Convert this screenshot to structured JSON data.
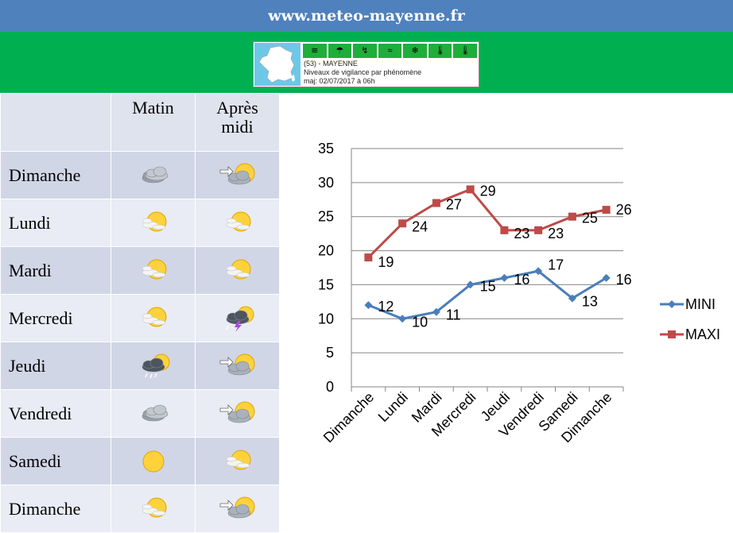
{
  "header": {
    "site": "www.meteo-mayenne.fr"
  },
  "vigilance": {
    "dept": "(53) - MAYENNE",
    "subtitle": "Niveaux de vigilance par phénomène",
    "updated": "maj: 02/07/2017 à 06h",
    "phenomena": [
      "wind-icon",
      "rain-flood-icon",
      "thunderstorm-icon",
      "flood-icon",
      "snow-ice-icon",
      "heat-icon",
      "cold-icon"
    ]
  },
  "forecast": {
    "col_morning": "Matin",
    "col_afternoon_l1": "Après",
    "col_afternoon_l2": "midi",
    "days": [
      {
        "name": "Dimanche",
        "morning": "cloudy",
        "afternoon": "sun-cloud-wind"
      },
      {
        "name": "Lundi",
        "morning": "partly-sunny",
        "afternoon": "partly-sunny"
      },
      {
        "name": "Mardi",
        "morning": "partly-sunny",
        "afternoon": "partly-sunny"
      },
      {
        "name": "Mercredi",
        "morning": "partly-sunny",
        "afternoon": "thunderstorm"
      },
      {
        "name": "Jeudi",
        "morning": "showers",
        "afternoon": "sun-cloud-wind"
      },
      {
        "name": "Vendredi",
        "morning": "cloudy",
        "afternoon": "sun-cloud-wind"
      },
      {
        "name": "Samedi",
        "morning": "sunny",
        "afternoon": "partly-sunny"
      },
      {
        "name": "Dimanche",
        "morning": "partly-sunny",
        "afternoon": "sun-cloud-wind"
      }
    ]
  },
  "chart_data": {
    "type": "line",
    "categories": [
      "Dimanche",
      "Lundi",
      "Mardi",
      "Mercredi",
      "Jeudi",
      "Vendredi",
      "Samedi",
      "Dimanche"
    ],
    "series": [
      {
        "name": "MINI",
        "color": "#4a7ebb",
        "marker": "diamond",
        "values": [
          12,
          10,
          11,
          15,
          16,
          17,
          13,
          16
        ]
      },
      {
        "name": "MAXI",
        "color": "#be4b48",
        "marker": "square",
        "values": [
          19,
          24,
          27,
          29,
          23,
          23,
          25,
          26
        ]
      }
    ],
    "ylim": [
      0,
      35
    ],
    "yticks": [
      0,
      5,
      10,
      15,
      20,
      25,
      30,
      35
    ],
    "grid": true,
    "legend": "right"
  }
}
